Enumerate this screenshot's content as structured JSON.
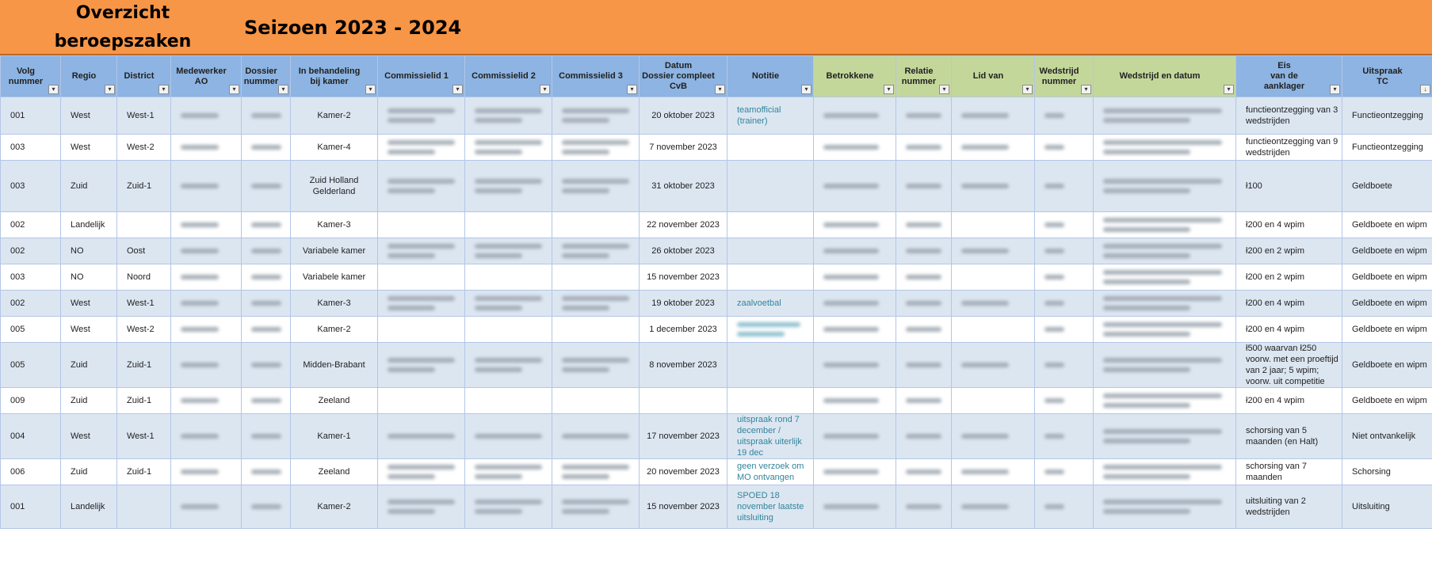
{
  "title": {
    "line1": "Overzicht",
    "line2": "beroepszaken",
    "season": "Seizoen 2023 - 2024"
  },
  "columns": [
    {
      "label": "Volg\nnummer",
      "filter": "▾"
    },
    {
      "label": "Regio",
      "filter": "▾"
    },
    {
      "label": "District",
      "filter": "▾"
    },
    {
      "label": "Medewerker\nAO",
      "filter": "▾"
    },
    {
      "label": "Dossier\nnummer",
      "filter": "▾"
    },
    {
      "label": "In behandeling\nbij kamer",
      "filter": "▾"
    },
    {
      "label": "Commissielid 1",
      "filter": "▾"
    },
    {
      "label": "Commissielid 2",
      "filter": "▾"
    },
    {
      "label": "Commissielid 3",
      "filter": "▾"
    },
    {
      "label": "Datum\nDossier compleet\nCvB",
      "filter": "▾"
    },
    {
      "label": "Notitie",
      "filter": "▾"
    },
    {
      "label": "Betrokkene",
      "filter": "▾"
    },
    {
      "label": "Relatie\nnummer",
      "filter": "▾"
    },
    {
      "label": "Lid van",
      "filter": "▾"
    },
    {
      "label": "Wedstrijd\nnummer",
      "filter": "▾"
    },
    {
      "label": "Wedstrijd en datum",
      "filter": "▾"
    },
    {
      "label": "Eis\nvan de\naanklager",
      "filter": "▾"
    },
    {
      "label": "Uitspraak\nTC",
      "filter": "↓"
    }
  ],
  "rows": [
    {
      "volg": "001",
      "regio": "West",
      "district": "West-1",
      "kamer": "Kamer-2",
      "datum": "20 oktober 2023",
      "notitie": "teamofficial (trainer)",
      "eis": "functieontzegging van 3 wedstrijden",
      "uitspraak": "Functieontzegging"
    },
    {
      "volg": "003",
      "regio": "West",
      "district": "West-2",
      "kamer": "Kamer-4",
      "datum": "7 november 2023",
      "notitie": "",
      "eis": "functieontzegging van 9 wedstrijden",
      "uitspraak": "Functieontzegging"
    },
    {
      "volg": "003",
      "regio": "Zuid",
      "district": "Zuid-1",
      "kamer": "Zuid Holland Gelderland",
      "datum": "31 oktober 2023",
      "notitie": "",
      "eis": "ł100",
      "uitspraak": "Geldboete"
    },
    {
      "volg": "002",
      "regio": "Landelijk",
      "district": "",
      "kamer": "Kamer-3",
      "datum": "22 november 2023",
      "notitie": "",
      "eis": "ł200 en 4 wpim",
      "uitspraak": "Geldboete en wipm"
    },
    {
      "volg": "002",
      "regio": "NO",
      "district": "Oost",
      "kamer": "Variabele kamer",
      "datum": "26 oktober 2023",
      "notitie": "",
      "eis": "ł200 en 2 wpim",
      "uitspraak": "Geldboete en wipm"
    },
    {
      "volg": "003",
      "regio": "NO",
      "district": "Noord",
      "kamer": "Variabele kamer",
      "datum": "15 november 2023",
      "notitie": "",
      "eis": "ł200 en 2 wpim",
      "uitspraak": "Geldboete en wipm"
    },
    {
      "volg": "002",
      "regio": "West",
      "district": "West-1",
      "kamer": "Kamer-3",
      "datum": "19 oktober 2023",
      "notitie": "zaalvoetbal",
      "eis": "ł200 en 4 wpim",
      "uitspraak": "Geldboete en wipm"
    },
    {
      "volg": "005",
      "regio": "West",
      "district": "West-2",
      "kamer": "Kamer-2",
      "datum": "1 december 2023",
      "notitie": "",
      "eis": "ł200 en 4 wpim",
      "uitspraak": "Geldboete en wipm"
    },
    {
      "volg": "005",
      "regio": "Zuid",
      "district": "Zuid-1",
      "kamer": "Midden-Brabant",
      "datum": "8 november 2023",
      "notitie": "",
      "eis": "ł500 waarvan ł250 voorw. met een proeftijd van 2 jaar; 5 wpim; voorw. uit competitie",
      "uitspraak": "Geldboete en wipm"
    },
    {
      "volg": "009",
      "regio": "Zuid",
      "district": "Zuid-1",
      "kamer": "Zeeland",
      "datum": "",
      "notitie": "",
      "eis": "ł200 en 4 wpim",
      "uitspraak": "Geldboete en wipm"
    },
    {
      "volg": "004",
      "regio": "West",
      "district": "West-1",
      "kamer": "Kamer-1",
      "datum": "17 november 2023",
      "notitie": "uitspraak rond 7 december / uitspraak uiterlijk 19 dec",
      "eis": "schorsing van 5 maanden (en Halt)",
      "uitspraak": "Niet ontvankelijk"
    },
    {
      "volg": "006",
      "regio": "Zuid",
      "district": "Zuid-1",
      "kamer": "Zeeland",
      "datum": "20 november 2023",
      "notitie": "geen verzoek om MO ontvangen",
      "eis": "schorsing van 7 maanden",
      "uitspraak": "Schorsing"
    },
    {
      "volg": "001",
      "regio": "Landelijk",
      "district": "",
      "kamer": "Kamer-2",
      "datum": "15 november 2023",
      "notitie": "SPOED 18 november laatste uitsluiting",
      "eis": "uitsluiting van 2 wedstrijden",
      "uitspraak": "Uitsluiting"
    }
  ]
}
